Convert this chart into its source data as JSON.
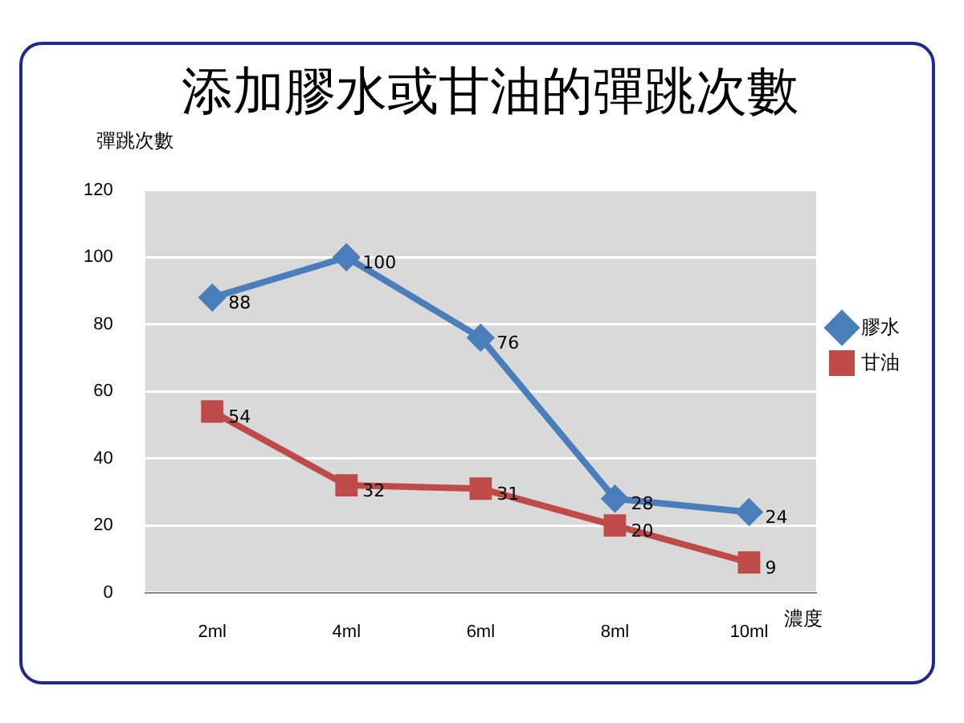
{
  "chart_data": {
    "type": "line",
    "title": "添加膠水或甘油的彈跳次數",
    "ylabel": "彈跳次數",
    "xlabel": "濃度",
    "categories": [
      "2ml",
      "4ml",
      "6ml",
      "8ml",
      "10ml"
    ],
    "series": [
      {
        "name": "膠水",
        "color": "#4a7ebb",
        "values": [
          88,
          100,
          76,
          28,
          24
        ],
        "marker": "diamond"
      },
      {
        "name": "甘油",
        "color": "#be4b48",
        "values": [
          54,
          32,
          31,
          20,
          9
        ],
        "marker": "square"
      }
    ],
    "ylim": [
      0,
      120
    ],
    "yticks": [
      0,
      20,
      40,
      60,
      80,
      100,
      120
    ],
    "grid": "y",
    "legend": "right",
    "data_labels": true,
    "line_style": "solid"
  }
}
